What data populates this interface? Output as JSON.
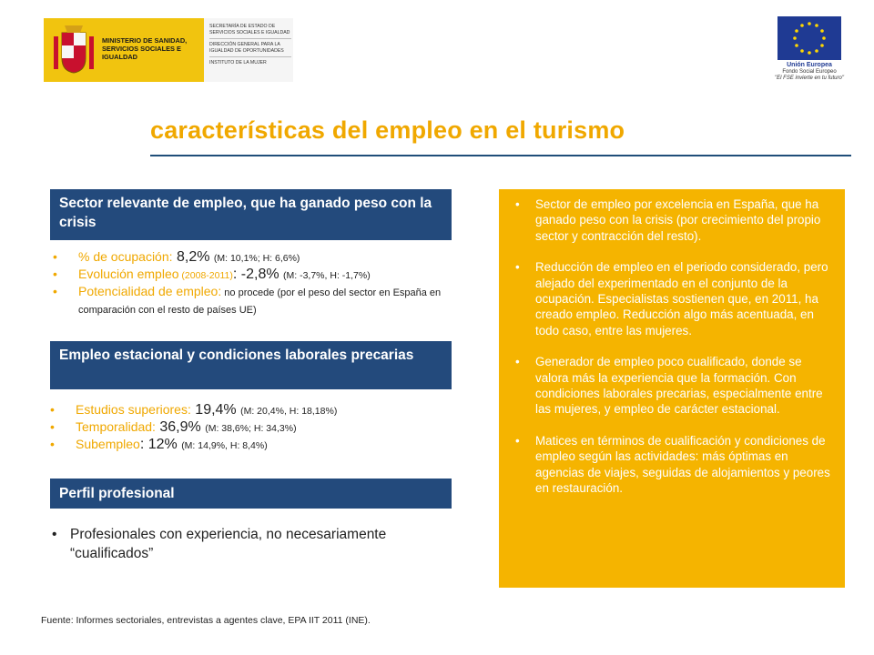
{
  "header": {
    "ministry_name": "Ministerio de Sanidad, Servicios Sociales e Igualdad",
    "ministry_sub": [
      "Secretaría de Estado de Servicios Sociales e Igualdad",
      "Dirección General para la Igualdad de Oportunidades",
      "Instituto de la Mujer"
    ],
    "eu_name": "Unión Europea",
    "eu_fund": "Fondo Social Europeo",
    "eu_slogan": "\"El FSE invierte en tu futuro\""
  },
  "title": "características del empleo en el turismo",
  "section1": {
    "heading": "Sector relevante de empleo, que ha ganado peso con la crisis",
    "items": [
      {
        "label": "% de ocupación:",
        "sub": "",
        "value": " 8,2% ",
        "detail": "(M: 10,1%; H: 6,6%)"
      },
      {
        "label": "Evolución empleo",
        "sub": " (2008-2011)",
        "value": ":  -2,8% ",
        "detail": "(M: -3,7%, H: -1,7%)"
      },
      {
        "label": "Potencialidad de empleo:",
        "sub": "",
        "value": "",
        "detail": "  no procede (por el peso del sector en España en comparación con el resto de países UE)"
      }
    ]
  },
  "section2": {
    "heading": "Empleo estacional y condiciones laborales precarias",
    "items": [
      {
        "label": "Estudios superiores:",
        "value": " 19,4% ",
        "detail": "(M: 20,4%, H: 18,18%)"
      },
      {
        "label": "Temporalidad:",
        "value": " 36,9% ",
        "detail": "(M: 38,6%; H: 34,3%)"
      },
      {
        "label": "Subempleo",
        "value": ": 12% ",
        "detail": "(M: 14,9%, H: 8,4%)"
      }
    ]
  },
  "section3": {
    "heading": "Perfil profesional",
    "item": "Profesionales con experiencia, no necesariamente “cualificados”"
  },
  "panel": {
    "items": [
      "Sector de empleo por excelencia en España, que ha ganado peso con la crisis  (por crecimiento del propio sector y contracción del resto).",
      "Reducción de empleo en el periodo considerado, pero alejado del experimentado en el conjunto de la ocupación. Especialistas sostienen que, en 2011, ha creado empleo. Reducción algo más acentuada, en todo caso, entre las mujeres.",
      "Generador de empleo poco cualificado, donde se valora más la experiencia que la formación. Con condiciones laborales precarias, especialmente entre las mujeres, y empleo de carácter estacional.",
      "Matices en términos de cualificación y condiciones de empleo según las actividades: más óptimas en agencias de viajes, seguidas de alojamientos y peores en restauración."
    ]
  },
  "source": "Fuente: Informes sectoriales, entrevistas a agentes clave, EPA IIT 2011 (INE).",
  "colors": {
    "accent": "#f0a800",
    "navy": "#234a7c",
    "panel": "#f5b400",
    "eu_blue": "#1f3a93"
  }
}
